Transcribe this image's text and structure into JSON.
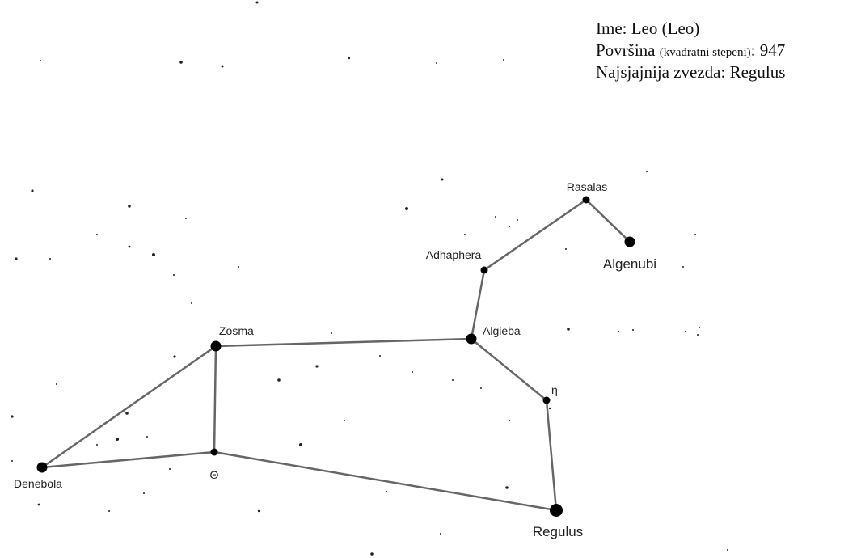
{
  "info": {
    "name": "Ime: Leo (Leo)",
    "area_label": "Površina ",
    "area_unit": "(kvadratni stepeni)",
    "area_sep": ": ",
    "area": 947,
    "brightest": "Najsjajnija zvezda: Regulus"
  },
  "nodes": [
    {
      "label": "Rasalas"
    },
    {
      "label": "Algenubi"
    },
    {
      "label": "Adhaphera"
    },
    {
      "label": "Algieba"
    },
    {
      "label": "η"
    },
    {
      "label": "Regulus"
    },
    {
      "label": "Zosma"
    },
    {
      "label": "Θ"
    },
    {
      "label": "Denebola"
    }
  ]
}
